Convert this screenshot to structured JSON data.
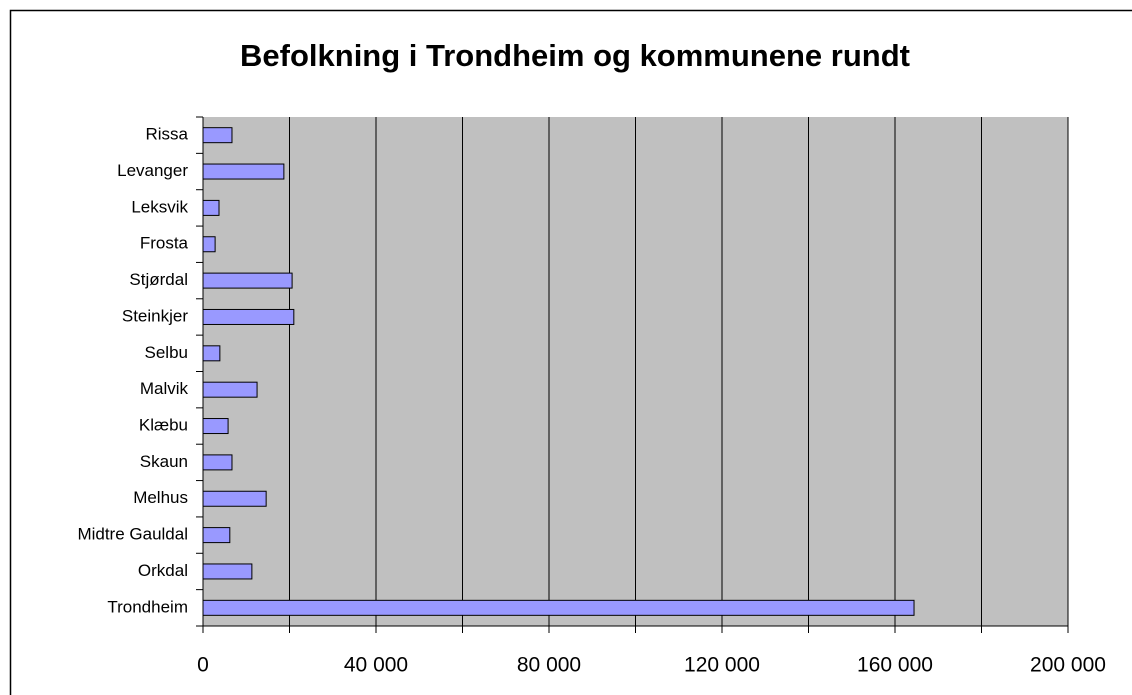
{
  "chart_data": {
    "type": "bar",
    "orientation": "horizontal",
    "title": "Befolkning i Trondheim og kommunene rundt",
    "categories": [
      "Trondheim",
      "Orkdal",
      "Midtre Gauldal",
      "Melhus",
      "Skaun",
      "Klæbu",
      "Malvik",
      "Selbu",
      "Steinkjer",
      "Stjørdal",
      "Frosta",
      "Leksvik",
      "Levanger",
      "Rissa"
    ],
    "values": [
      164400,
      11300,
      6200,
      14600,
      6700,
      5800,
      12500,
      3900,
      21000,
      20600,
      2800,
      3700,
      18700,
      6700
    ],
    "color": "#9999ff",
    "xlim": [
      0,
      200000
    ],
    "xticks": [
      0,
      {
        "value": 40000,
        "label": "40 000"
      },
      {
        "value": 80000,
        "label": "80 000"
      },
      {
        "value": 120000,
        "label": "120 000"
      },
      {
        "value": 160000,
        "label": "160 000"
      },
      {
        "value": 200000,
        "label": "200 000"
      }
    ],
    "xgrid": [
      0,
      20000,
      40000,
      60000,
      80000,
      100000,
      120000,
      140000,
      160000,
      180000,
      200000
    ],
    "grid": true
  }
}
